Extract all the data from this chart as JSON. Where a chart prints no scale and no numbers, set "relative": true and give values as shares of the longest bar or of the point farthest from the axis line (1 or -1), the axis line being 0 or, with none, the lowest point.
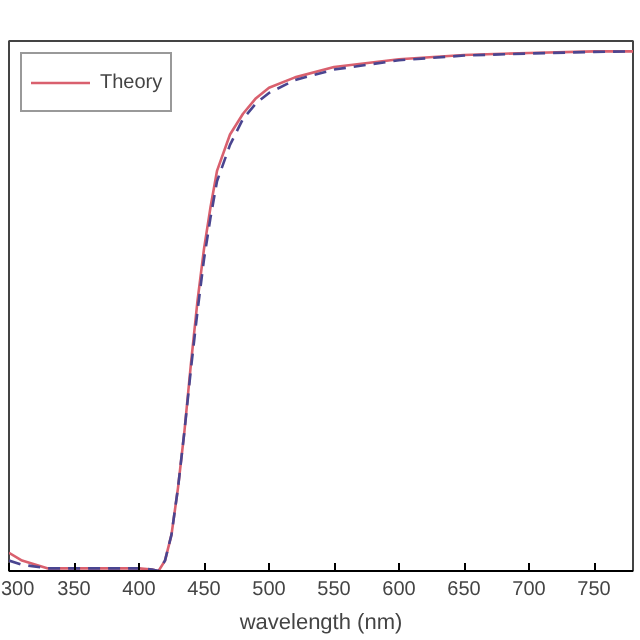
{
  "chart_data": {
    "type": "line",
    "xlabel": "wavelength (nm)",
    "relative": true,
    "xlim": [
      300,
      780
    ],
    "xticks": [
      300,
      350,
      400,
      450,
      500,
      550,
      600,
      650,
      700,
      750
    ],
    "tick_labels": "x",
    "legend": "top left",
    "grid": false,
    "marker": "none",
    "series": [
      {
        "name": "Theory",
        "color": "#d9606e",
        "line_style": "solid",
        "x": [
          300,
          310,
          330,
          350,
          380,
          400,
          410,
          415,
          420,
          425,
          430,
          435,
          440,
          445,
          450,
          455,
          460,
          470,
          480,
          490,
          500,
          520,
          550,
          600,
          650,
          700,
          750,
          780
        ],
        "values": [
          0.035,
          0.02,
          0.005,
          0.005,
          0.005,
          0.005,
          0.003,
          0,
          0.02,
          0.07,
          0.16,
          0.27,
          0.4,
          0.52,
          0.62,
          0.7,
          0.77,
          0.84,
          0.88,
          0.91,
          0.93,
          0.95,
          0.97,
          0.985,
          0.993,
          0.997,
          1,
          1
        ]
      },
      {
        "color": "#4a4590",
        "line_style": "dashed",
        "x": [
          300,
          310,
          330,
          350,
          380,
          400,
          410,
          415,
          420,
          425,
          430,
          435,
          440,
          445,
          450,
          455,
          460,
          470,
          480,
          490,
          500,
          520,
          550,
          600,
          650,
          700,
          750,
          780
        ],
        "values": [
          0.02,
          0.012,
          0.005,
          0.005,
          0.005,
          0.005,
          0.003,
          0,
          0.02,
          0.07,
          0.16,
          0.27,
          0.39,
          0.5,
          0.6,
          0.68,
          0.75,
          0.82,
          0.87,
          0.9,
          0.92,
          0.945,
          0.965,
          0.983,
          0.992,
          0.996,
          0.999,
          1
        ]
      }
    ]
  }
}
